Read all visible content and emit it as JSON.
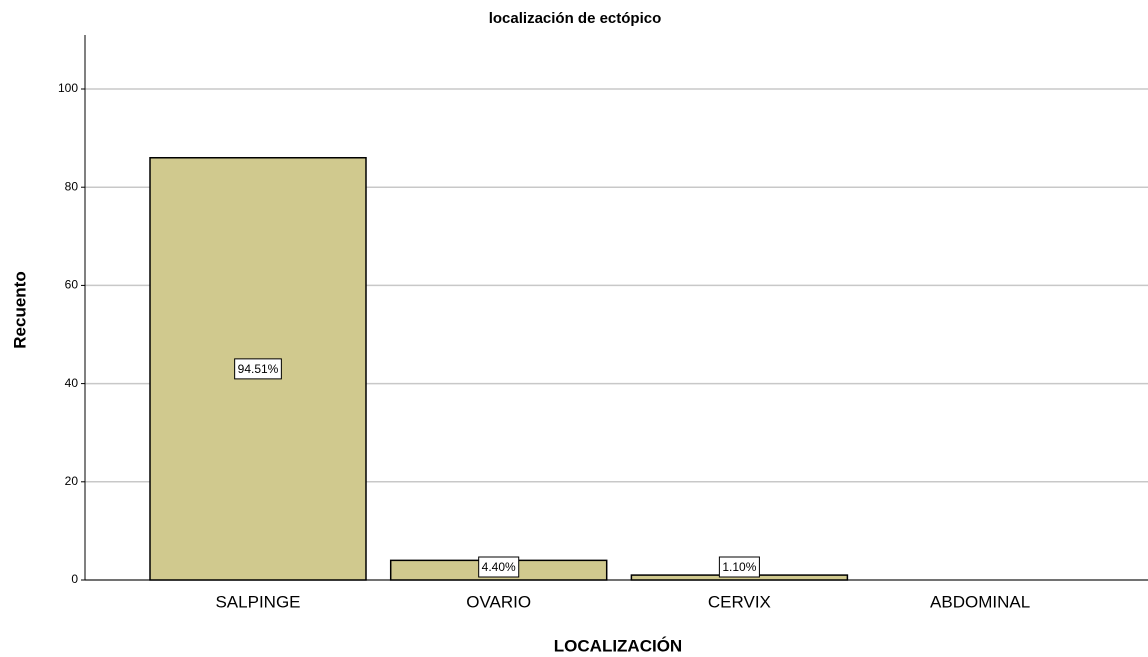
{
  "chart_data": {
    "type": "bar",
    "title": "localización de ectópico",
    "x_label": "LOCALIZACIÓN",
    "y_label": "Recuento",
    "categories": [
      "SALPINGE",
      "OVARIO",
      "CERVIX",
      "ABDOMINAL"
    ],
    "values": [
      86,
      4,
      1,
      0
    ],
    "data_labels": [
      "94.51%",
      "4.40%",
      "1.10%",
      null
    ],
    "color": "#d0c98e",
    "ylim": [
      0,
      111
    ],
    "yticks": [
      0,
      20,
      40,
      60,
      80,
      100
    ],
    "grid": true
  }
}
